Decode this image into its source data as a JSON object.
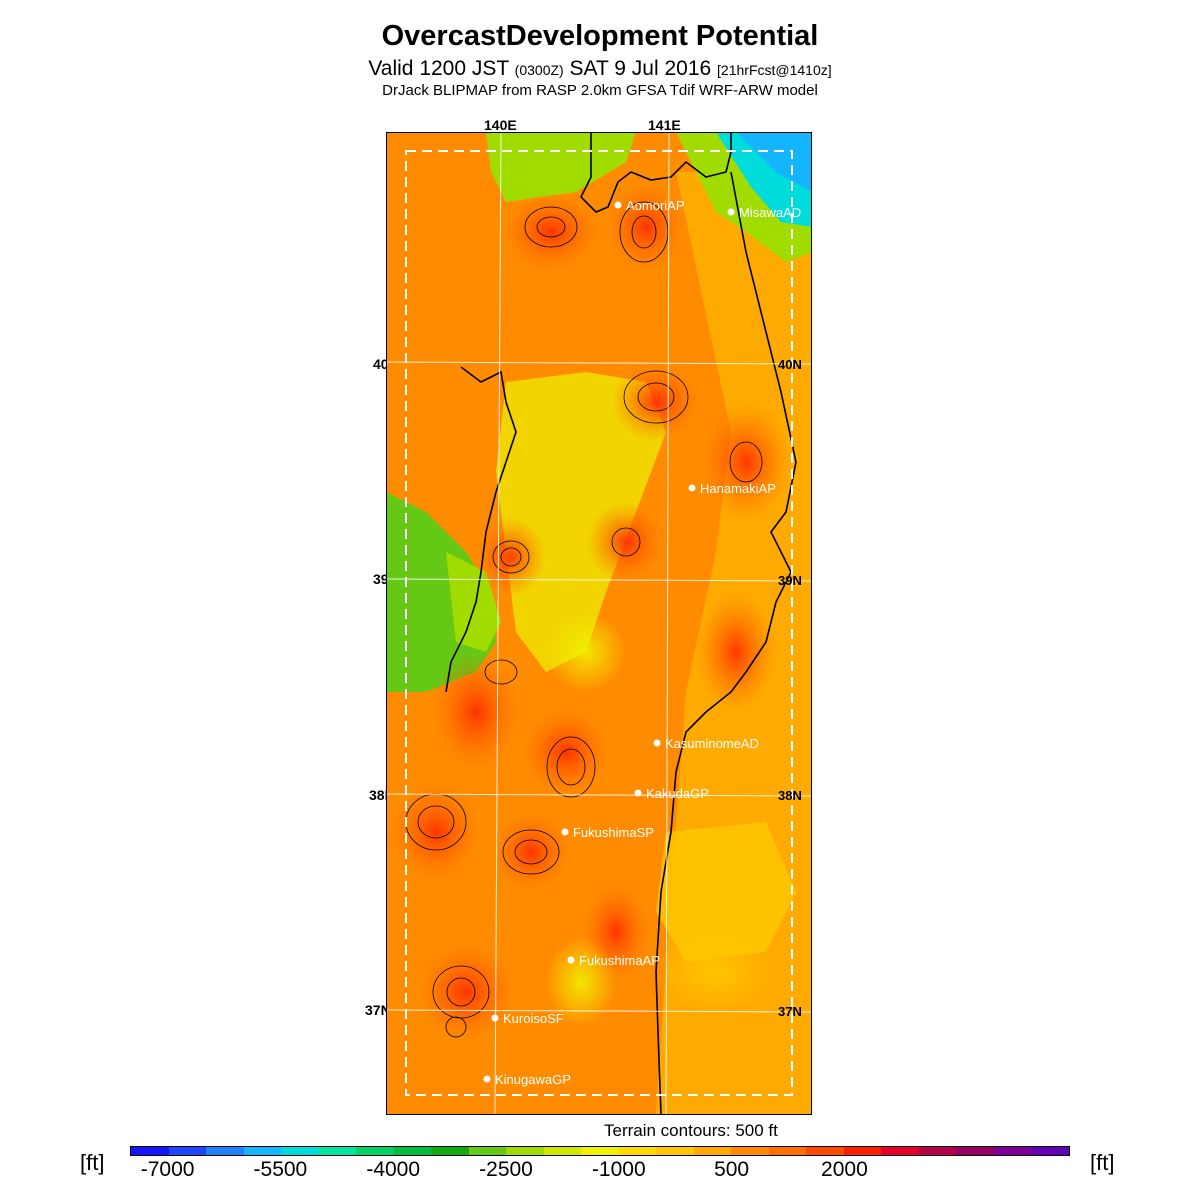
{
  "header": {
    "title": "OvercastDevelopment Potential",
    "subtitle_main": "Valid 1200 JST",
    "subtitle_zulu": "(0300Z)",
    "subtitle_date": "SAT 9 Jul 2016",
    "subtitle_fcst": "[21hrFcst@1410z]",
    "source": "DrJack BLIPMAP from RASP 2.0km GFSA Tdif WRF-ARW model"
  },
  "map": {
    "lon_labels": [
      "140E",
      "141E"
    ],
    "lat_labels": [
      "40N",
      "39N",
      "38N",
      "37N"
    ],
    "sites": [
      {
        "name": "AomoriAP"
      },
      {
        "name": "MisawaAD"
      },
      {
        "name": "HanamakiAP"
      },
      {
        "name": "KasuminomeAD"
      },
      {
        "name": "KakudaGP"
      },
      {
        "name": "FukushimaSP"
      },
      {
        "name": "FukushimaAP"
      },
      {
        "name": "KuroisoSF"
      },
      {
        "name": "KinugawaGP"
      }
    ],
    "terrain_note": "Terrain contours: 500 ft"
  },
  "colorbar": {
    "unit_left": "[ft]",
    "unit_right": "[ft]",
    "tick_labels": [
      "-7000",
      "-5500",
      "-4000",
      "-2500",
      "-1000",
      "500",
      "2000"
    ],
    "colors": [
      "#1414ff",
      "#1e46ff",
      "#1e82ff",
      "#14b4ff",
      "#00dcdc",
      "#00e6a0",
      "#00d264",
      "#00be3c",
      "#14aa14",
      "#64c814",
      "#a0dc00",
      "#d2e600",
      "#f0f000",
      "#ffdc00",
      "#ffc800",
      "#ffaa00",
      "#ff8c00",
      "#ff6e00",
      "#ff4b00",
      "#ff1e00",
      "#e6002d",
      "#b40046",
      "#960064",
      "#7d0096",
      "#6400b4"
    ]
  }
}
